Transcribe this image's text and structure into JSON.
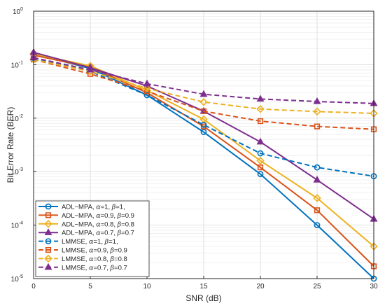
{
  "chart_data": {
    "type": "line",
    "title": "",
    "xlabel": "SNR (dB)",
    "ylabel": "Bit Error Rate (BER)",
    "x": [
      0,
      5,
      10,
      15,
      20,
      25,
      30
    ],
    "xlim": [
      0,
      30
    ],
    "ylim": [
      1e-05,
      1
    ],
    "yscale": "log",
    "grid": true,
    "minor_grid": true,
    "legend_position": "bottom-left",
    "x_ticks": [
      "0",
      "5",
      "10",
      "15",
      "20",
      "25",
      "30"
    ],
    "y_ticks": [
      {
        "base": "10",
        "exp": "0"
      },
      {
        "base": "10",
        "exp": "-1"
      },
      {
        "base": "10",
        "exp": "-2"
      },
      {
        "base": "10",
        "exp": "-3"
      },
      {
        "base": "10",
        "exp": "-4"
      },
      {
        "base": "10",
        "exp": "-5"
      }
    ],
    "series": [
      {
        "name_parts": [
          "ADL−MPA, ",
          "α",
          "=1, ",
          "β",
          "=1,"
        ],
        "color": "#0072BD",
        "marker": "circle",
        "dash": false,
        "values": [
          0.16,
          0.085,
          0.027,
          0.0055,
          0.0009,
          0.0001,
          1e-05
        ]
      },
      {
        "name_parts": [
          "ADL−MPA, ",
          "α",
          "=0.9, ",
          "β",
          "=0.9"
        ],
        "color": "#D95319",
        "marker": "square",
        "dash": false,
        "values": [
          0.15,
          0.09,
          0.03,
          0.007,
          0.0012,
          0.00019,
          1.7e-05
        ]
      },
      {
        "name_parts": [
          "ADL−MPA, ",
          "α",
          "=0.8, ",
          "β",
          "=0.8"
        ],
        "color": "#EDB120",
        "marker": "diamond",
        "dash": false,
        "values": [
          0.16,
          0.095,
          0.033,
          0.0095,
          0.0016,
          0.00032,
          4e-05
        ]
      },
      {
        "name_parts": [
          "ADL−MPA, ",
          "α",
          "=0.7, ",
          "β",
          "=0.7"
        ],
        "color": "#7E2F8E",
        "marker": "triangle",
        "dash": false,
        "values": [
          0.17,
          0.088,
          0.04,
          0.0135,
          0.0036,
          0.0007,
          0.00013
        ]
      },
      {
        "name_parts": [
          "LMMSE, ",
          "α",
          "=1, ",
          "β",
          "=1,"
        ],
        "color": "#0072BD",
        "marker": "circle",
        "dash": true,
        "values": [
          0.13,
          0.075,
          0.027,
          0.0075,
          0.0022,
          0.0012,
          0.00082
        ]
      },
      {
        "name_parts": [
          "LMMSE, ",
          "α",
          "=0.9, ",
          "β",
          "=0.9"
        ],
        "color": "#D95319",
        "marker": "square",
        "dash": true,
        "values": [
          0.125,
          0.067,
          0.032,
          0.0135,
          0.0088,
          0.007,
          0.0062
        ]
      },
      {
        "name_parts": [
          "LMMSE, ",
          "α",
          "=0.8, ",
          "β",
          "=0.8"
        ],
        "color": "#EDB120",
        "marker": "diamond",
        "dash": true,
        "values": [
          0.125,
          0.075,
          0.036,
          0.02,
          0.0148,
          0.0133,
          0.0123
        ]
      },
      {
        "name_parts": [
          "LMMSE, ",
          "α",
          "=0.7, ",
          "β",
          "=0.7"
        ],
        "color": "#7E2F8E",
        "marker": "triangle",
        "dash": true,
        "values": [
          0.135,
          0.08,
          0.044,
          0.028,
          0.0228,
          0.0205,
          0.0188
        ]
      }
    ]
  }
}
